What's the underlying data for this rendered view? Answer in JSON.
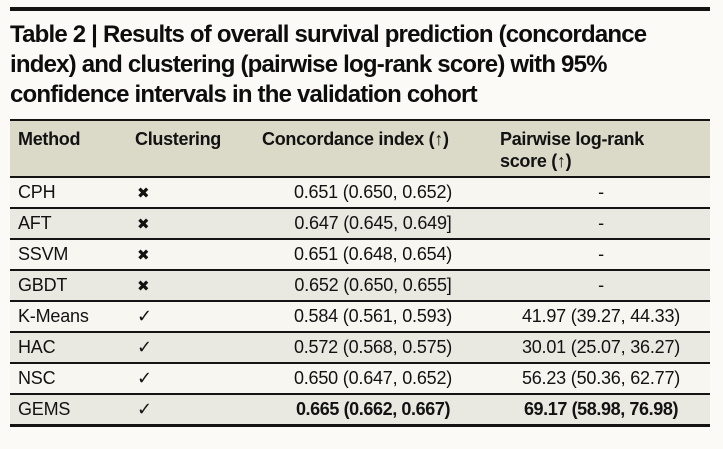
{
  "page": {
    "title_lines": [
      "Table 2 | Results of overall survival prediction (concordance",
      "index) and clustering (pairwise log-rank score) with 95%",
      "confidence intervals in the validation cohort"
    ]
  },
  "table": {
    "columns": [
      "Method",
      "Clustering",
      "Concordance index (↑)",
      "Pairwise log-rank score (↑)"
    ],
    "rows": [
      {
        "method": "CPH",
        "clustering": "✖",
        "concordance": "0.651 (0.650, 0.652)",
        "logrank": "-",
        "bold": false
      },
      {
        "method": "AFT",
        "clustering": "✖",
        "concordance": "0.647 (0.645, 0.649]",
        "logrank": "-",
        "bold": false
      },
      {
        "method": "SSVM",
        "clustering": "✖",
        "concordance": "0.651 (0.648, 0.654)",
        "logrank": "-",
        "bold": false
      },
      {
        "method": "GBDT",
        "clustering": "✖",
        "concordance": "0.652 (0.650, 0.655]",
        "logrank": "-",
        "bold": false
      },
      {
        "method": "K-Means",
        "clustering": "✓",
        "concordance": "0.584 (0.561, 0.593)",
        "logrank": "41.97 (39.27, 44.33)",
        "bold": false
      },
      {
        "method": "HAC",
        "clustering": "✓",
        "concordance": "0.572 (0.568, 0.575)",
        "logrank": "30.01 (25.07, 36.27)",
        "bold": false
      },
      {
        "method": "NSC",
        "clustering": "✓",
        "concordance": "0.650 (0.647, 0.652)",
        "logrank": "56.23 (50.36, 62.77)",
        "bold": false
      },
      {
        "method": "GEMS",
        "clustering": "✓",
        "concordance": "0.665 (0.662, 0.667)",
        "logrank": "69.17 (58.98, 76.98)",
        "bold": true
      }
    ]
  },
  "colors": {
    "page_bg": "#fbfaf6",
    "header_bg": "#dbd9c8",
    "row_light": "#f7f6f1",
    "row_shade": "#e9e8e1",
    "rule": "#141414"
  }
}
